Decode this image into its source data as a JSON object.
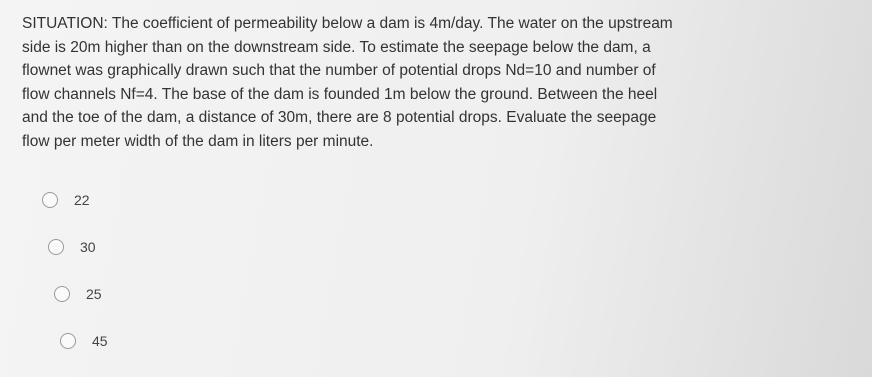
{
  "question": {
    "lines": [
      "SITUATION: The coefficient of permeability below a dam is 4m/day. The water on the upstream",
      "side is 20m higher than on the downstream side. To estimate the seepage below the dam, a",
      "flownet was graphically drawn such that the number of potential drops Nd=10 and number of",
      "flow channels Nf=4. The base of the dam is founded 1m below the ground. Between the heel",
      "and the toe of the dam, a distance of 30m, there are 8 potential drops.  Evaluate the seepage",
      "flow per meter width of the dam in liters per minute."
    ]
  },
  "options": [
    "22",
    "30",
    "25",
    "45"
  ]
}
